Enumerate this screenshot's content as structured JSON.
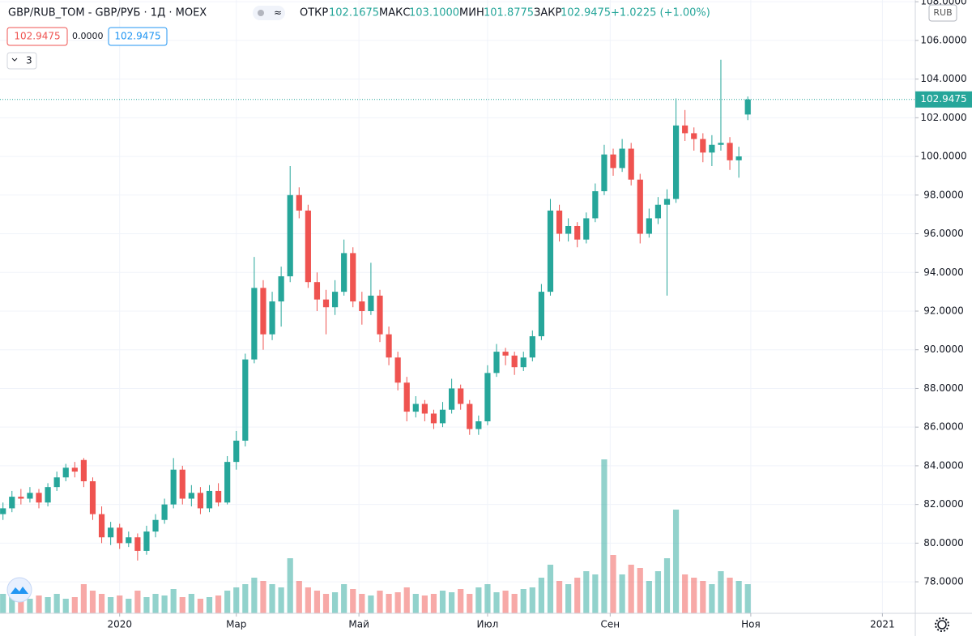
{
  "header": {
    "symbol": "GBP/RUB_TOM - GBP/РУБ · 1Д · MOEX",
    "open_label": "ОТКР",
    "open": "102.1675",
    "high_label": "МАКС",
    "high": "103.1000",
    "low_label": "МИН",
    "low": "101.8775",
    "close_label": "ЗАКР",
    "close": "102.9475",
    "change": "+1.0225 (+1.00%)",
    "bid": "102.9475",
    "spread": "0.0000",
    "ask": "102.9475",
    "indicators": "3",
    "currency": "RUB"
  },
  "chart_data": {
    "type": "candlestick",
    "up_color": "#26a69a",
    "down_color": "#ef5350",
    "x": [
      0,
      3,
      6,
      9,
      12,
      15,
      18,
      21,
      24,
      27,
      30,
      33,
      36,
      39,
      42,
      45,
      48,
      51,
      54,
      57,
      60,
      63,
      66,
      69,
      72,
      75,
      78,
      81,
      84,
      87,
      90,
      93,
      96,
      99,
      102,
      105,
      108,
      111,
      114,
      117,
      120,
      123,
      126,
      129,
      132,
      135,
      138,
      141,
      144,
      147,
      150,
      153,
      156,
      159,
      162,
      165,
      168,
      171,
      174,
      177,
      180,
      183,
      186,
      189,
      192,
      195,
      198,
      201,
      204,
      207,
      210,
      213,
      216,
      219,
      222,
      225,
      228,
      231,
      234,
      237,
      240,
      243,
      246,
      249
    ],
    "open": [
      81.5,
      81.8,
      82.4,
      82.3,
      82.6,
      82.1,
      82.9,
      83.4,
      83.9,
      84.3,
      83.2,
      81.5,
      80.3,
      80.8,
      80.0,
      80.3,
      79.6,
      80.6,
      81.2,
      82.0,
      83.8,
      82.3,
      82.6,
      81.8,
      82.7,
      82.1,
      84.2,
      85.3,
      89.5,
      93.2,
      90.8,
      92.5,
      93.8,
      98.0,
      97.2,
      93.5,
      92.6,
      92.2,
      93.0,
      95.0,
      92.5,
      92.0,
      92.8,
      90.8,
      89.6,
      88.3,
      86.8,
      87.2,
      86.7,
      86.2,
      86.9,
      88.0,
      87.2,
      85.9,
      86.3,
      88.8,
      89.9,
      89.7,
      89.1,
      89.6,
      90.7,
      93.0,
      97.2,
      96.0,
      96.4,
      95.7,
      96.8,
      98.2,
      100.1,
      99.4,
      100.4,
      98.8,
      96.0,
      96.8,
      97.5,
      97.8,
      101.6,
      101.2,
      100.9,
      100.2,
      100.6,
      100.7,
      99.8,
      102.1675
    ],
    "high": [
      82.1,
      82.7,
      82.8,
      82.9,
      82.8,
      83.1,
      83.7,
      84.1,
      84.2,
      84.4,
      83.4,
      81.9,
      81.1,
      81.0,
      80.6,
      80.5,
      80.9,
      81.5,
      82.3,
      84.4,
      84.0,
      83.0,
      82.9,
      83.0,
      83.1,
      84.5,
      85.8,
      89.8,
      94.8,
      93.6,
      93.0,
      94.3,
      99.5,
      98.4,
      97.5,
      94.0,
      93.1,
      93.6,
      95.7,
      95.3,
      93.0,
      94.5,
      93.1,
      91.2,
      89.9,
      88.6,
      87.6,
      87.4,
      86.9,
      87.3,
      88.5,
      88.2,
      87.4,
      86.6,
      89.2,
      90.3,
      90.1,
      89.9,
      89.9,
      91.0,
      93.4,
      97.8,
      97.5,
      96.8,
      96.6,
      97.1,
      98.6,
      100.6,
      100.4,
      100.9,
      100.7,
      99.1,
      97.3,
      97.9,
      98.3,
      103.0,
      102.4,
      101.5,
      101.2,
      101.1,
      105.0,
      101.0,
      100.5,
      103.1
    ],
    "low": [
      81.2,
      81.6,
      82.0,
      82.1,
      81.8,
      81.9,
      82.7,
      83.2,
      83.4,
      82.9,
      81.2,
      80.0,
      79.9,
      79.7,
      79.8,
      79.1,
      79.4,
      80.3,
      81.0,
      81.8,
      82.0,
      81.9,
      81.5,
      81.6,
      81.9,
      82.0,
      83.8,
      85.0,
      89.3,
      90.0,
      90.5,
      91.2,
      93.5,
      96.8,
      93.2,
      92.0,
      90.8,
      91.8,
      92.8,
      92.2,
      91.3,
      91.8,
      90.4,
      89.2,
      87.9,
      86.3,
      86.5,
      86.3,
      85.9,
      86.0,
      86.7,
      86.9,
      85.6,
      85.6,
      86.1,
      88.6,
      89.2,
      88.7,
      88.9,
      89.4,
      90.5,
      92.8,
      95.6,
      95.6,
      95.3,
      95.5,
      96.6,
      98.0,
      99.0,
      99.2,
      98.5,
      95.5,
      95.8,
      96.5,
      92.8,
      97.6,
      100.8,
      100.3,
      99.7,
      99.5,
      100.3,
      99.3,
      98.9,
      101.8775
    ],
    "close": [
      81.8,
      82.4,
      82.3,
      82.6,
      82.1,
      82.9,
      83.4,
      83.9,
      83.7,
      83.2,
      81.5,
      80.3,
      80.8,
      80.0,
      80.3,
      79.6,
      80.6,
      81.2,
      82.0,
      83.8,
      82.3,
      82.6,
      81.8,
      82.7,
      82.1,
      84.2,
      85.3,
      89.5,
      93.2,
      90.8,
      92.5,
      93.8,
      98.0,
      97.2,
      93.5,
      92.6,
      92.2,
      93.0,
      95.0,
      92.5,
      92.0,
      92.8,
      90.8,
      89.6,
      88.3,
      86.8,
      87.2,
      86.7,
      86.2,
      86.9,
      88.0,
      87.2,
      85.9,
      86.3,
      88.8,
      89.9,
      89.7,
      89.1,
      89.6,
      90.7,
      93.0,
      97.2,
      96.0,
      96.4,
      95.7,
      96.8,
      98.2,
      100.1,
      99.4,
      100.4,
      98.8,
      96.0,
      96.8,
      97.5,
      97.8,
      101.6,
      101.2,
      100.9,
      100.2,
      100.6,
      100.7,
      99.8,
      100.0,
      102.9475
    ],
    "volume": [
      12,
      10,
      8,
      9,
      11,
      10,
      12,
      9,
      10,
      18,
      14,
      12,
      10,
      11,
      9,
      14,
      10,
      12,
      11,
      15,
      10,
      12,
      9,
      10,
      11,
      14,
      16,
      18,
      22,
      20,
      18,
      16,
      34,
      20,
      16,
      14,
      12,
      13,
      18,
      15,
      12,
      11,
      14,
      12,
      13,
      16,
      12,
      11,
      12,
      14,
      13,
      15,
      12,
      16,
      18,
      13,
      14,
      12,
      15,
      16,
      22,
      30,
      20,
      18,
      22,
      26,
      24,
      95,
      36,
      24,
      30,
      28,
      20,
      26,
      34,
      64,
      24,
      22,
      20,
      18,
      26,
      22,
      20,
      18
    ],
    "volume_lim": [
      0,
      100
    ],
    "xlim": [
      -1,
      305
    ],
    "xticks": [
      {
        "value": 39,
        "label": "2020"
      },
      {
        "value": 78,
        "label": "Мар"
      },
      {
        "value": 119,
        "label": "Май"
      },
      {
        "value": 162,
        "label": "Июл"
      },
      {
        "value": 203,
        "label": "Сен"
      },
      {
        "value": 250,
        "label": "Ноя"
      },
      {
        "value": 294,
        "label": "2021"
      }
    ],
    "ylim": [
      76.37,
      108.09
    ],
    "yticks": [
      {
        "value": 78,
        "label": "78.0000"
      },
      {
        "value": 80,
        "label": "80.0000"
      },
      {
        "value": 82,
        "label": "82.0000"
      },
      {
        "value": 84,
        "label": "84.0000"
      },
      {
        "value": 86,
        "label": "86.0000"
      },
      {
        "value": 88,
        "label": "88.0000"
      },
      {
        "value": 90,
        "label": "90.0000"
      },
      {
        "value": 92,
        "label": "92.0000"
      },
      {
        "value": 94,
        "label": "94.0000"
      },
      {
        "value": 96,
        "label": "96.0000"
      },
      {
        "value": 98,
        "label": "98.0000"
      },
      {
        "value": 100,
        "label": "100.0000"
      },
      {
        "value": 102,
        "label": "102.0000"
      },
      {
        "value": 104,
        "label": "104.0000"
      },
      {
        "value": 106,
        "label": "106.0000"
      },
      {
        "value": 108,
        "label": "108.0000"
      }
    ],
    "grid": true
  }
}
